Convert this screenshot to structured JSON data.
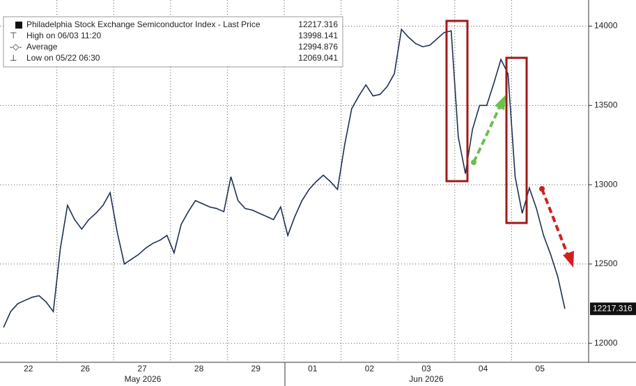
{
  "chart_data": {
    "type": "line",
    "stats": [
      {
        "label": "Philadelphia Stock Exchange Semiconductor Index - Last Price",
        "value": 12217.316
      },
      {
        "label": "High on 06/03 11:20",
        "value": 13998.141
      },
      {
        "label": "Average",
        "value": 12994.876
      },
      {
        "label": "Low on 05/22 06:30",
        "value": 12069.041
      }
    ],
    "categories": [
      "22",
      "26",
      "27",
      "28",
      "29",
      "01",
      "02",
      "03",
      "04",
      "05"
    ],
    "month_labels": [
      "May 2026",
      "Jun 2026"
    ],
    "series": [
      {
        "name": "Philadelphia Stock Exchange Semiconductor Index - Last Price",
        "color": "#1d3050",
        "values": [
          [
            12100,
            12200,
            12250,
            12270,
            12290,
            12300,
            12260,
            12200
          ],
          [
            12600,
            12870,
            12780,
            12720,
            12780,
            12820,
            12870,
            12950
          ],
          [
            12700,
            12500,
            12530,
            12560,
            12600,
            12630,
            12650,
            12680
          ],
          [
            12570,
            12750,
            12830,
            12900,
            12880,
            12860,
            12850,
            12830
          ],
          [
            13050,
            12900,
            12850,
            12840,
            12820,
            12800,
            12780,
            12860
          ],
          [
            12680,
            12800,
            12900,
            12970,
            13020,
            13060,
            13020,
            12970
          ],
          [
            13250,
            13480,
            13560,
            13630,
            13560,
            13570,
            13620,
            13700
          ],
          [
            13980,
            13930,
            13890,
            13870,
            13880,
            13920,
            13960,
            13970
          ],
          [
            13300,
            13070,
            13350,
            13500,
            13500,
            13640,
            13790,
            13700
          ],
          [
            13050,
            12820,
            12980,
            12850,
            12680,
            12560,
            12420,
            12217.316
          ]
        ]
      }
    ],
    "ylim": [
      11880,
      14165
    ],
    "yticks": [
      12000,
      12500,
      13000,
      13500,
      14000
    ],
    "grid": true
  }
}
